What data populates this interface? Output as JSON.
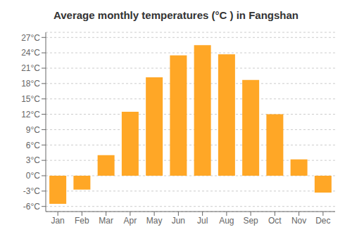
{
  "chart_data": {
    "type": "bar",
    "title": "Average monthly temperatures (°C ) in Fangshan",
    "categories": [
      "Jan",
      "Feb",
      "Mar",
      "Apr",
      "May",
      "Jun",
      "Jul",
      "Aug",
      "Sep",
      "Oct",
      "Nov",
      "Dec"
    ],
    "values": [
      -5.5,
      -2.7,
      4.0,
      12.5,
      19.2,
      23.5,
      25.5,
      23.7,
      18.7,
      12.0,
      3.2,
      -3.3
    ],
    "color": "#FFA726",
    "ylim": [
      -7,
      28
    ],
    "yticks": [
      {
        "value": -6,
        "label": "-6°C"
      },
      {
        "value": -3,
        "label": "-3°C"
      },
      {
        "value": 0,
        "label": "0°C"
      },
      {
        "value": 3,
        "label": "3°C"
      },
      {
        "value": 6,
        "label": "6°C"
      },
      {
        "value": 9,
        "label": "9°C"
      },
      {
        "value": 12,
        "label": "12°C"
      },
      {
        "value": 15,
        "label": "15°C"
      },
      {
        "value": 18,
        "label": "18°C"
      },
      {
        "value": 21,
        "label": "21°C"
      },
      {
        "value": 24,
        "label": "24°C"
      },
      {
        "value": 27,
        "label": "27°C"
      }
    ],
    "grid": true
  }
}
